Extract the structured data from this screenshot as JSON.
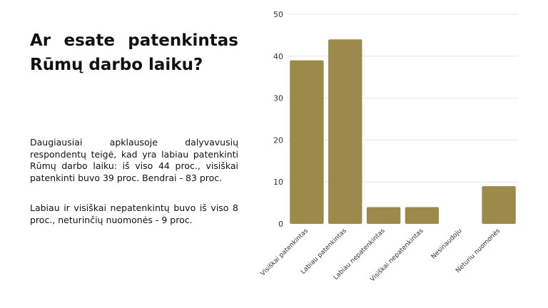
{
  "slide": {
    "title": "Ar esate patenkintas Rūmų darbo laiku?",
    "paragraph1": "Daugiausiai apklausoje dalyvavusių respondentų teigė, kad yra labiau patenkinti Rūmų darbo laiku: iš viso 44 proc., visiškai patenkinti buvo 39 proc. Bendrai - 83 proc.",
    "paragraph2": "Labiau ir visiškai nepatenkintų buvo iš viso 8 proc., neturinčių nuomonės - 9 proc."
  },
  "chart_data": {
    "type": "bar",
    "categories": [
      "Visiškai patenkintas",
      "Labiau patenkintas",
      "Labiau nepatenkintas",
      "Visiškai nepatenkintas",
      "Nesinaudoju",
      "Neturiu nuomonės"
    ],
    "values": [
      39,
      44,
      4,
      4,
      0,
      9
    ],
    "ylim": [
      0,
      50
    ],
    "yticks": [
      0,
      10,
      20,
      30,
      40,
      50
    ],
    "grid": true,
    "legend": "none",
    "bar_color": "#9b8a49",
    "grid_color": "#e6e6e6"
  }
}
